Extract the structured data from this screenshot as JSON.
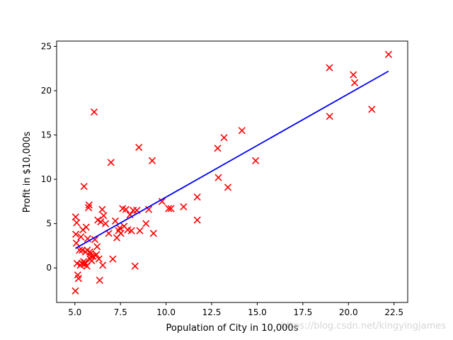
{
  "chart_data": {
    "type": "scatter",
    "title": "",
    "xlabel": "Population of City in 10,000s",
    "ylabel": "Profit in $10,000s",
    "xlim": [
      4.0,
      23.25
    ],
    "ylim": [
      -3.9,
      25.6
    ],
    "xticks": [
      "5.0",
      "7.5",
      "10.0",
      "12.5",
      "15.0",
      "17.5",
      "20.0",
      "22.5"
    ],
    "xtick_values": [
      5.0,
      7.5,
      10.0,
      12.5,
      15.0,
      17.5,
      20.0,
      22.5
    ],
    "yticks": [
      "0",
      "5",
      "10",
      "15",
      "20",
      "25"
    ],
    "ytick_values": [
      0,
      5,
      10,
      15,
      20,
      25
    ],
    "grid": false,
    "series": [
      {
        "kind": "scatter",
        "marker": "x",
        "color": "#ff0000",
        "x": [
          5.03,
          5.04,
          5.05,
          5.08,
          5.1,
          5.12,
          5.16,
          5.2,
          5.25,
          5.3,
          5.33,
          5.38,
          5.4,
          5.44,
          5.48,
          5.5,
          5.52,
          5.56,
          5.59,
          5.62,
          5.66,
          5.68,
          5.7,
          5.75,
          5.78,
          5.82,
          5.84,
          5.86,
          5.88,
          5.92,
          6.0,
          6.06,
          6.1,
          6.18,
          6.22,
          6.26,
          6.32,
          6.36,
          6.42,
          6.5,
          6.53,
          6.58,
          6.68,
          6.86,
          6.98,
          7.08,
          7.22,
          7.3,
          7.4,
          7.46,
          7.52,
          7.62,
          7.7,
          7.8,
          7.9,
          8.02,
          8.1,
          8.2,
          8.3,
          8.4,
          8.51,
          8.56,
          8.9,
          9.05,
          9.24,
          9.31,
          9.78,
          10.14,
          10.27,
          10.96,
          11.71,
          11.71,
          12.83,
          12.87,
          13.18,
          13.39,
          14.16,
          14.91,
          18.96,
          18.97,
          20.27,
          20.34,
          21.28,
          22.2
        ],
        "y": [
          -2.6,
          5.75,
          3.8,
          2.8,
          5.1,
          0.5,
          -0.8,
          -1.2,
          2.0,
          0.3,
          3.5,
          0.5,
          2.0,
          4.3,
          0.7,
          9.2,
          0.4,
          0.6,
          1.8,
          4.6,
          0.2,
          2.0,
          3.3,
          6.8,
          7.1,
          1.8,
          1.0,
          1.6,
          1.3,
          0.8,
          1.3,
          17.6,
          3.2,
          1.5,
          2.4,
          5.4,
          1.0,
          -1.4,
          5.2,
          6.6,
          0.3,
          5.9,
          5.0,
          3.9,
          11.9,
          1.0,
          5.3,
          3.4,
          4.2,
          4.5,
          3.9,
          6.7,
          4.7,
          6.6,
          4.3,
          6.0,
          4.2,
          6.5,
          0.2,
          6.5,
          13.6,
          4.2,
          5.0,
          6.6,
          12.1,
          3.9,
          7.5,
          6.7,
          6.7,
          6.9,
          8.0,
          5.4,
          13.5,
          10.2,
          14.7,
          9.1,
          15.5,
          12.1,
          22.6,
          17.1,
          21.8,
          20.9,
          17.9,
          24.1
        ]
      },
      {
        "kind": "line",
        "color": "#0000ff",
        "x": [
          5.03,
          22.2
        ],
        "y": [
          2.2,
          22.2
        ]
      }
    ]
  },
  "watermark": "https://blog.csdn.net/kingyingjames"
}
